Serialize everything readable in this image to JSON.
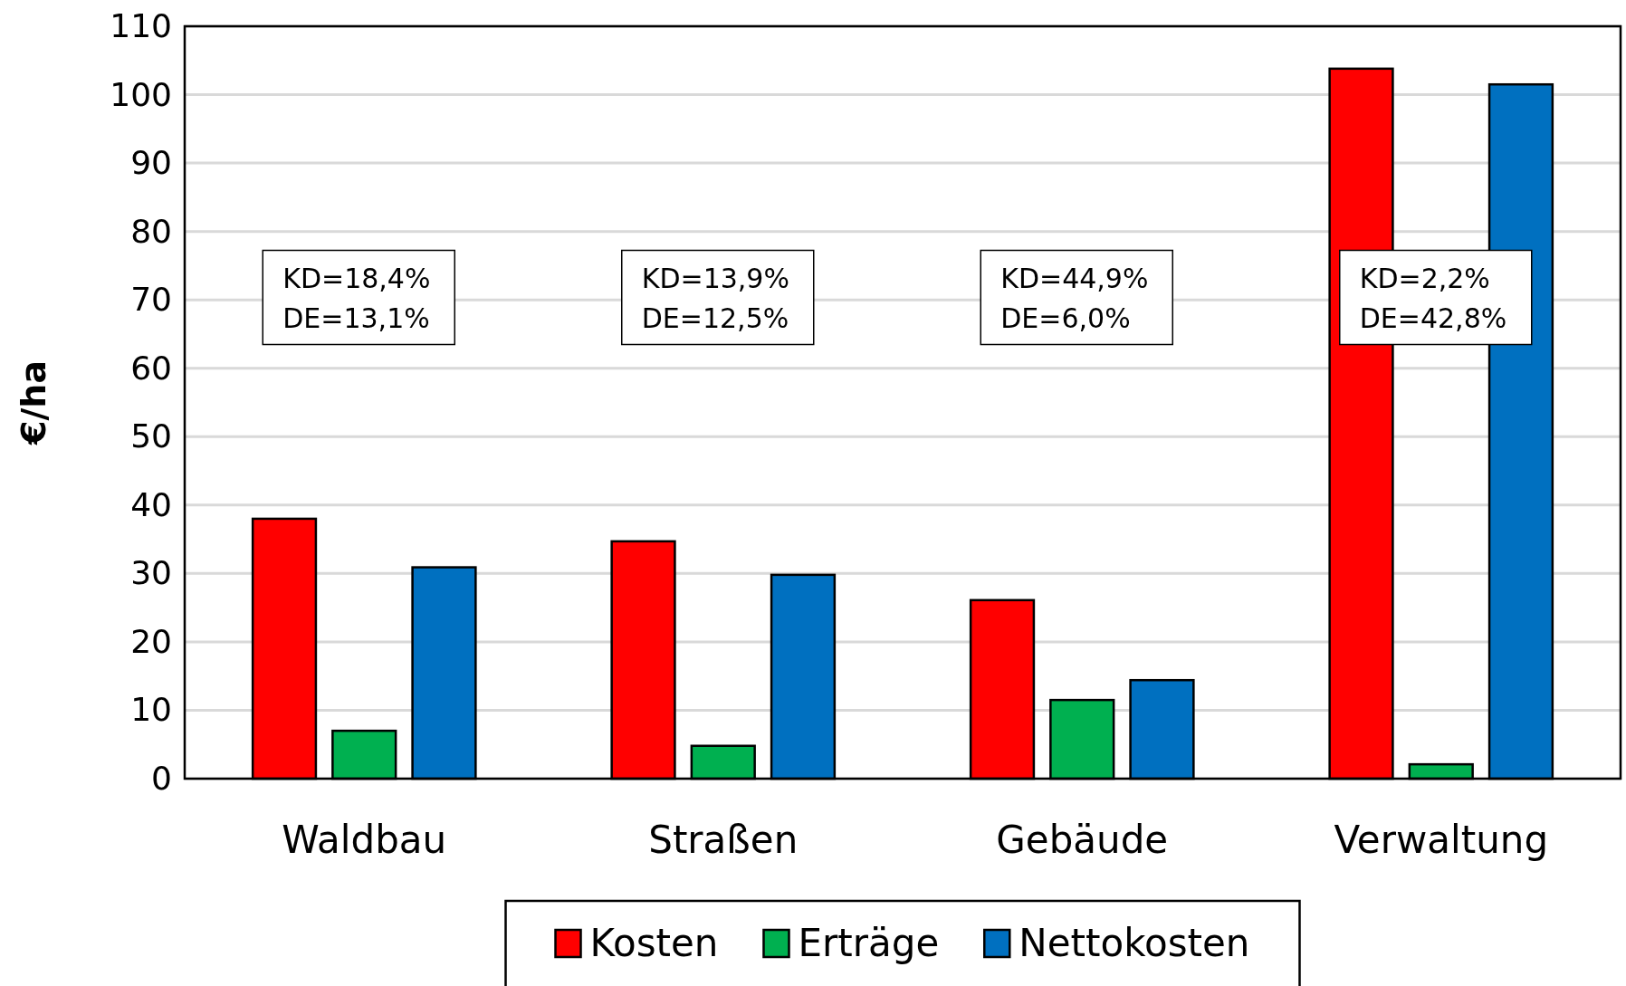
{
  "chart_data": {
    "type": "bar",
    "ylabel": "€/ha",
    "categories": [
      "Waldbau",
      "Straßen",
      "Gebäude",
      "Verwaltung"
    ],
    "series": [
      {
        "name": "Kosten",
        "color": "#ff0000",
        "values": [
          38.0,
          34.7,
          26.1,
          103.8
        ]
      },
      {
        "name": "Erträge",
        "color": "#00b050",
        "values": [
          7.0,
          4.8,
          11.5,
          2.1
        ]
      },
      {
        "name": "Nettokosten",
        "color": "#0070c0",
        "values": [
          30.9,
          29.8,
          14.4,
          101.5
        ]
      }
    ],
    "ylim": [
      0,
      110
    ],
    "yticks": [
      0,
      10,
      20,
      30,
      40,
      50,
      60,
      70,
      80,
      90,
      100,
      110
    ],
    "grid": "y",
    "legend": "bottom",
    "annotations": [
      "KD=18,4%\nDE=13,1%",
      "KD=13,9%\nDE=12,5%",
      "KD=44,9%\nDE=6,0%",
      "KD=2,2%\nDE=42,8%"
    ]
  }
}
